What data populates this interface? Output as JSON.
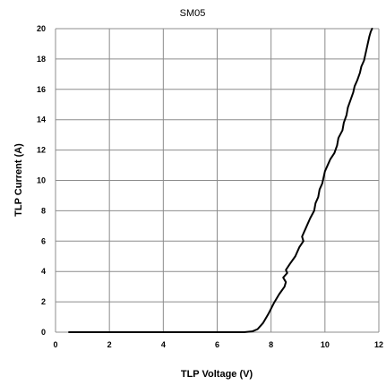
{
  "chart_data": {
    "type": "line",
    "title": "SM05",
    "xlabel": "TLP Voltage (V)",
    "ylabel": "TLP Current (A)",
    "xlim": [
      0,
      12
    ],
    "ylim": [
      0,
      20
    ],
    "x_ticks": [
      0,
      2,
      4,
      6,
      8,
      10,
      12
    ],
    "y_ticks": [
      0,
      2,
      4,
      6,
      8,
      10,
      12,
      14,
      16,
      18,
      20
    ],
    "grid": true,
    "legend": "none",
    "series": [
      {
        "color": "#000000",
        "x": [
          0.5,
          2,
          4,
          6,
          7.0,
          7.3,
          7.5,
          7.7,
          7.9,
          8.1,
          8.3,
          8.5,
          8.55,
          8.45,
          8.6,
          8.55,
          8.7,
          8.9,
          9.05,
          9.2,
          9.15,
          9.3,
          9.45,
          9.6,
          9.65,
          9.75,
          9.8,
          9.9,
          9.95,
          10.0,
          10.1,
          10.2,
          10.35,
          10.45,
          10.5,
          10.65,
          10.7,
          10.8,
          10.85,
          10.95,
          11.05,
          11.1,
          11.2,
          11.3,
          11.35,
          11.45,
          11.5,
          11.55,
          11.6,
          11.65,
          11.7,
          11.75
        ],
        "y": [
          0,
          0,
          0,
          0,
          0,
          0.05,
          0.2,
          0.6,
          1.2,
          1.9,
          2.5,
          3.0,
          3.3,
          3.6,
          3.9,
          4.1,
          4.5,
          5.0,
          5.6,
          6.0,
          6.3,
          6.9,
          7.5,
          8.0,
          8.5,
          8.9,
          9.4,
          9.8,
          10.2,
          10.6,
          11.0,
          11.4,
          11.8,
          12.3,
          12.8,
          13.3,
          13.8,
          14.3,
          14.8,
          15.3,
          15.8,
          16.2,
          16.6,
          17.1,
          17.5,
          17.9,
          18.3,
          18.7,
          19.1,
          19.5,
          19.8,
          20.0
        ]
      }
    ]
  }
}
